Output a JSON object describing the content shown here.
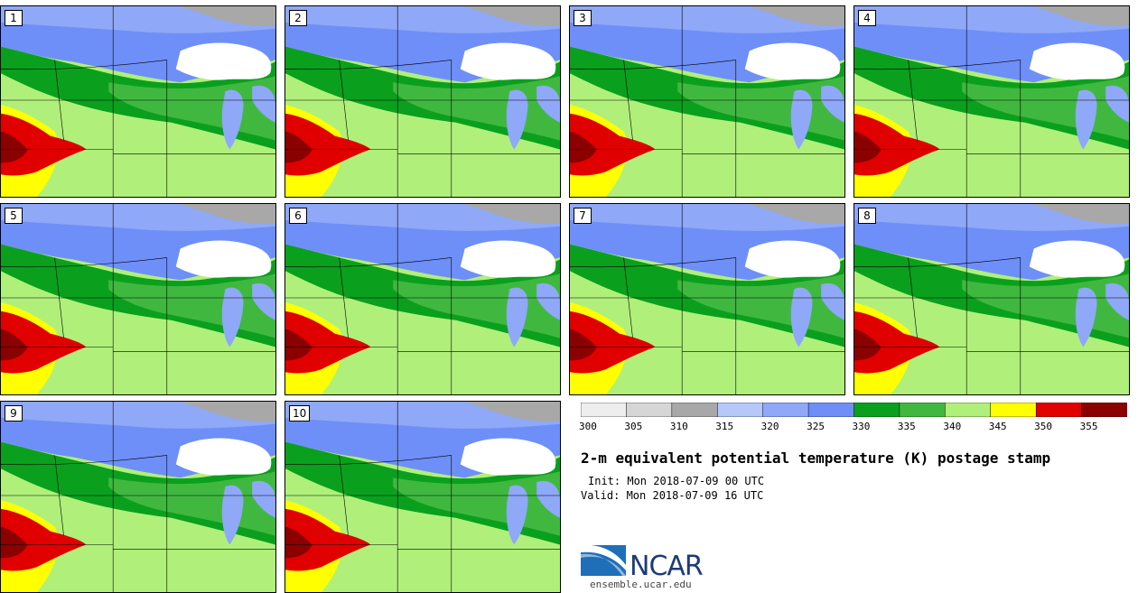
{
  "panels": [
    {
      "label": "1"
    },
    {
      "label": "2"
    },
    {
      "label": "3"
    },
    {
      "label": "4"
    },
    {
      "label": "5"
    },
    {
      "label": "6"
    },
    {
      "label": "7"
    },
    {
      "label": "8"
    },
    {
      "label": "9"
    },
    {
      "label": "10"
    }
  ],
  "legend": {
    "colors": [
      "#eeeeee",
      "#d6d6d6",
      "#a8a8a8",
      "#b5c8f8",
      "#8fa8f8",
      "#6e8ff7",
      "#0aa01e",
      "#40b840",
      "#b0f07a",
      "#ffff00",
      "#e00000",
      "#8b0000"
    ],
    "ticks": [
      "300",
      "305",
      "310",
      "315",
      "320",
      "325",
      "330",
      "335",
      "340",
      "345",
      "350",
      "355"
    ]
  },
  "title": "2-m equivalent potential temperature (K) postage stamp",
  "init": "Init: Mon 2018-07-09 00 UTC",
  "valid": "Valid: Mon 2018-07-09 16 UTC",
  "logo_text": "NCAR",
  "site": "ensemble.ucar.edu"
}
